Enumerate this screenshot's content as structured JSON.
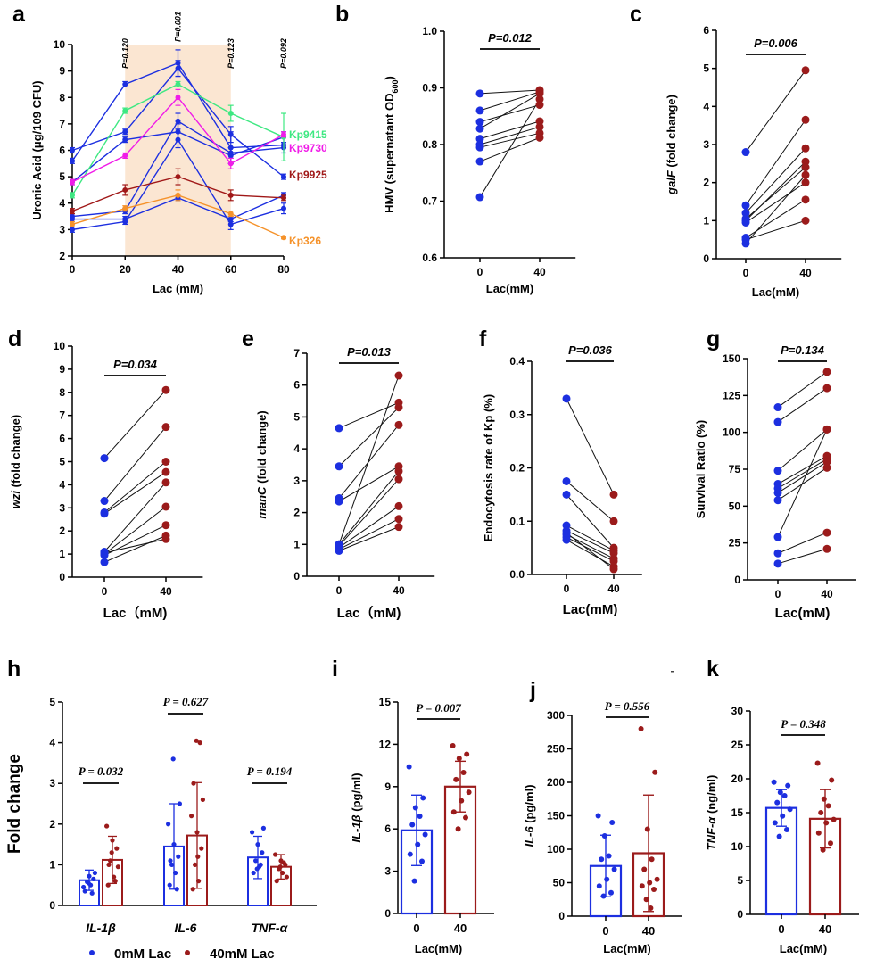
{
  "colors": {
    "blue": "#1c2fe0",
    "red": "#9b1b1b",
    "green": "#3ee882",
    "magenta": "#f01ce8",
    "darkred": "#a01818",
    "orange": "#f5922a",
    "shade": "#fbe6d2"
  },
  "legend": {
    "items": [
      {
        "label": "0mM Lac",
        "color": "#1c2fe0"
      },
      {
        "label": "40mM Lac",
        "color": "#9b1b1b"
      }
    ]
  },
  "chart_data": [
    {
      "id": "a",
      "type": "line",
      "label": "a",
      "xlabel": "Lac (mM)",
      "ylabel": "Uronic Acid (μg/10⁹ CFU)",
      "x": [
        0,
        20,
        40,
        60,
        80
      ],
      "ylim": [
        2,
        10
      ],
      "yticks": [
        2,
        3,
        4,
        5,
        6,
        7,
        8,
        9,
        10
      ],
      "shade_range": [
        20,
        60
      ],
      "pvalues": [
        {
          "x": 20,
          "text": "P=0.120"
        },
        {
          "x": 40,
          "text": "P=0.001"
        },
        {
          "x": 60,
          "text": "P=0.123"
        },
        {
          "x": 80,
          "text": "P=0.092"
        }
      ],
      "series": [
        {
          "name": "b1",
          "color": "#1c2fe0",
          "values": [
            5.6,
            8.5,
            9.3,
            6.1,
            6.2
          ],
          "err": [
            0.1,
            0.1,
            0.5,
            0.6,
            0.1
          ]
        },
        {
          "name": "b2",
          "color": "#1c2fe0",
          "values": [
            6.0,
            6.7,
            9.1,
            6.6,
            5.0
          ],
          "err": [
            0.1,
            0.1,
            0.3,
            0.3,
            0.1
          ]
        },
        {
          "name": "b3",
          "color": "#1c2fe0",
          "values": [
            4.8,
            6.4,
            6.7,
            5.8,
            6.5
          ],
          "err": [
            0.1,
            0.1,
            0.3,
            0.3,
            0.2
          ]
        },
        {
          "name": "b4",
          "color": "#1c2fe0",
          "values": [
            3.5,
            3.7,
            7.1,
            5.9,
            6.1
          ],
          "err": [
            0.1,
            0.1,
            0.3,
            0.2,
            0.2
          ]
        },
        {
          "name": "b5",
          "color": "#1c2fe0",
          "values": [
            3.0,
            3.3,
            6.4,
            3.2,
            3.8
          ],
          "err": [
            0.1,
            0.1,
            0.3,
            0.2,
            0.2
          ]
        },
        {
          "name": "b6",
          "color": "#1c2fe0",
          "values": [
            3.4,
            3.4,
            4.2,
            3.4,
            4.3
          ],
          "err": [
            0.1,
            0.1,
            0.1,
            0.1,
            0.1
          ]
        },
        {
          "name": "Kp9415",
          "color": "#3ee882",
          "values": [
            4.3,
            7.5,
            8.5,
            7.4,
            6.5
          ],
          "err": [
            0.1,
            0.1,
            0.1,
            0.3,
            0.9
          ],
          "label": true
        },
        {
          "name": "Kp9730",
          "color": "#f01ce8",
          "values": [
            4.8,
            5.8,
            8.0,
            5.5,
            6.6
          ],
          "err": [
            0.1,
            0.1,
            0.3,
            0.2,
            0.1
          ],
          "label": true
        },
        {
          "name": "Kp9925",
          "color": "#a01818",
          "values": [
            3.7,
            4.5,
            5.0,
            4.3,
            4.2
          ],
          "err": [
            0.1,
            0.2,
            0.3,
            0.2,
            0.1
          ],
          "label": true
        },
        {
          "name": "Kp326",
          "color": "#f5922a",
          "values": [
            3.2,
            3.8,
            4.3,
            3.6,
            2.7
          ],
          "err": [
            0.1,
            0.1,
            0.2,
            0.1,
            0.05
          ],
          "label": true
        }
      ]
    },
    {
      "id": "b",
      "type": "scatter",
      "label": "b",
      "xlabel": "Lac(mM)",
      "ylabel": "HMV (supernatant OD",
      "ylabel_sub": "600",
      "ylabel_end": ")",
      "categories": [
        "0",
        "40"
      ],
      "ylim": [
        0.6,
        1.0
      ],
      "yticks": [
        "0.6",
        "0.7",
        "0.8",
        "0.9",
        "1.0"
      ],
      "pvalue": "P=0.012",
      "pairs": [
        [
          0.89,
          0.896
        ],
        [
          0.86,
          0.893
        ],
        [
          0.84,
          0.87
        ],
        [
          0.828,
          0.89
        ],
        [
          0.81,
          0.841
        ],
        [
          0.8,
          0.831
        ],
        [
          0.795,
          0.82
        ],
        [
          0.77,
          0.812
        ],
        [
          0.707,
          0.88
        ]
      ]
    },
    {
      "id": "c",
      "type": "scatter",
      "label": "c",
      "xlabel": "Lac(mM)",
      "ylabel": "galF  (fold change)",
      "ylabel_italic": "galF",
      "ylabel_rest": " (fold change)",
      "categories": [
        "0",
        "40"
      ],
      "ylim": [
        0,
        6
      ],
      "yticks": [
        "0",
        "1",
        "2",
        "3",
        "4",
        "5",
        "6"
      ],
      "pvalue": "P=0.006",
      "pairs": [
        [
          2.8,
          4.95
        ],
        [
          1.4,
          3.65
        ],
        [
          1.2,
          2.9
        ],
        [
          1.0,
          2.55
        ],
        [
          1.05,
          2.4
        ],
        [
          0.95,
          2.0
        ],
        [
          0.55,
          1.55
        ],
        [
          0.5,
          1.0
        ],
        [
          0.4,
          2.2
        ]
      ]
    },
    {
      "id": "d",
      "type": "scatter",
      "label": "d",
      "xlabel": "Lac（mM)",
      "ylabel_italic": "wzi",
      "ylabel_rest": " (fold change)",
      "categories": [
        "0",
        "40"
      ],
      "ylim": [
        0,
        10
      ],
      "yticks": [
        "0",
        "1",
        "2",
        "3",
        "4",
        "5",
        "6",
        "7",
        "8",
        "9",
        "10"
      ],
      "pvalue": "P=0.034",
      "pairs": [
        [
          5.15,
          8.1
        ],
        [
          3.3,
          6.5
        ],
        [
          2.8,
          5.0
        ],
        [
          2.75,
          4.55
        ],
        [
          1.1,
          4.1
        ],
        [
          1.0,
          3.05
        ],
        [
          0.95,
          2.25
        ],
        [
          0.65,
          1.8
        ],
        [
          1.05,
          1.65
        ]
      ]
    },
    {
      "id": "e",
      "type": "scatter",
      "label": "e",
      "xlabel": "Lac（mM)",
      "ylabel_italic": "manC",
      "ylabel_rest": "  (fold change)",
      "categories": [
        "0",
        "40"
      ],
      "ylim": [
        0,
        7
      ],
      "yticks": [
        "0",
        "1",
        "2",
        "3",
        "4",
        "5",
        "6",
        "7"
      ],
      "pvalue": "P=0.013",
      "pairs": [
        [
          4.65,
          5.45
        ],
        [
          3.45,
          5.3
        ],
        [
          2.45,
          4.75
        ],
        [
          2.35,
          3.45
        ],
        [
          1.0,
          3.3
        ],
        [
          0.95,
          3.05
        ],
        [
          0.9,
          2.2
        ],
        [
          0.85,
          1.8
        ],
        [
          0.8,
          1.55
        ],
        [
          1.0,
          6.3
        ]
      ]
    },
    {
      "id": "f",
      "type": "scatter",
      "label": "f",
      "xlabel": "Lac(mM)",
      "ylabel": "Endocytosis rate of Kp (%)",
      "categories": [
        "0",
        "40"
      ],
      "ylim": [
        0,
        0.4
      ],
      "yticks": [
        "0.0",
        "0.1",
        "0.2",
        "0.3",
        "0.4"
      ],
      "pvalue": "P=0.036",
      "pairs": [
        [
          0.33,
          0.15
        ],
        [
          0.175,
          0.1
        ],
        [
          0.15,
          0.05
        ],
        [
          0.092,
          0.045
        ],
        [
          0.082,
          0.04
        ],
        [
          0.075,
          0.03
        ],
        [
          0.07,
          0.025
        ],
        [
          0.065,
          0.015
        ],
        [
          0.078,
          0.01
        ]
      ]
    },
    {
      "id": "g",
      "type": "scatter",
      "label": "g",
      "xlabel": "Lac(mM)",
      "ylabel": "Survival Ratio (%)",
      "categories": [
        "0",
        "40"
      ],
      "ylim": [
        0,
        150
      ],
      "yticks": [
        "0",
        "25",
        "50",
        "75",
        "100",
        "125",
        "150"
      ],
      "pvalue": "P=0.134",
      "pairs": [
        [
          117,
          141
        ],
        [
          107,
          130
        ],
        [
          74,
          102
        ],
        [
          65,
          84
        ],
        [
          62,
          82
        ],
        [
          59,
          80
        ],
        [
          54,
          76
        ],
        [
          29,
          102
        ],
        [
          18,
          32
        ],
        [
          11,
          21
        ]
      ]
    },
    {
      "id": "h",
      "type": "bar",
      "label": "h",
      "ylabel": "Fold change",
      "categories": [
        "IL-1β",
        "IL-6",
        "TNF-α"
      ],
      "ylim": [
        0,
        5
      ],
      "yticks": [
        "0",
        "1",
        "2",
        "3",
        "4",
        "5"
      ],
      "series": [
        {
          "name": "0mM Lac",
          "color": "#1c2fe0",
          "values": [
            0.62,
            1.45,
            1.18
          ],
          "err": [
            0.25,
            1.05,
            0.52
          ],
          "points": [
            [
              0.35,
              0.5,
              0.58,
              0.65,
              0.72,
              0.45,
              0.8,
              0.55,
              0.3
            ],
            [
              0.5,
              0.8,
              1.0,
              1.2,
              1.5,
              2.0,
              2.5,
              3.6,
              0.4,
              1.1
            ],
            [
              0.8,
              0.95,
              1.1,
              1.3,
              1.5,
              1.8,
              1.9,
              0.9,
              1.0
            ]
          ]
        },
        {
          "name": "40mM Lac",
          "color": "#9b1b1b",
          "values": [
            1.12,
            1.72,
            0.95
          ],
          "err": [
            0.58,
            1.3,
            0.3
          ],
          "points": [
            [
              0.5,
              0.7,
              1.1,
              1.4,
              1.6,
              1.95,
              0.95,
              1.3,
              0.6,
              1.0
            ],
            [
              0.4,
              0.6,
              1.0,
              1.4,
              1.8,
              2.2,
              2.6,
              4.05,
              4.0,
              3.0,
              1.2
            ],
            [
              0.6,
              0.8,
              0.9,
              1.0,
              1.1,
              1.25,
              0.7,
              0.95,
              1.05
            ]
          ]
        }
      ],
      "pvalues": [
        "P = 0.032",
        "P = 0.627",
        "P = 0.194"
      ]
    },
    {
      "id": "i",
      "type": "bar",
      "label": "i",
      "xlabel": "Lac(mM)",
      "ylabel_italic": "IL-1β",
      "ylabel_rest": " (pg/ml)",
      "categories": [
        "0",
        "40"
      ],
      "ylim": [
        0,
        15
      ],
      "yticks": [
        "0",
        "3",
        "6",
        "9",
        "12",
        "15"
      ],
      "pvalue": "P = 0.007",
      "values": [
        5.9,
        9.0
      ],
      "err": [
        2.5,
        1.8
      ],
      "points": [
        [
          10.4,
          8.2,
          7.5,
          6.9,
          6.3,
          5.6,
          4.9,
          4.2,
          3.7,
          2.3
        ],
        [
          11.9,
          11.3,
          11.0,
          10.0,
          9.5,
          8.6,
          8.0,
          7.2,
          6.8,
          6.0
        ]
      ]
    },
    {
      "id": "j",
      "type": "bar",
      "label": "j",
      "xlabel": "Lac(mM)",
      "ylabel_italic": "IL-6",
      "ylabel_rest": " (pg/ml)",
      "categories": [
        "0",
        "40"
      ],
      "ylim": [
        0,
        300
      ],
      "yticks": [
        "0",
        "50",
        "100",
        "150",
        "200",
        "250",
        "300"
      ],
      "pvalue": "P = 0.556",
      "values": [
        75,
        94
      ],
      "err": [
        46,
        87
      ],
      "points": [
        [
          150,
          140,
          120,
          90,
          85,
          70,
          55,
          45,
          35,
          30
        ],
        [
          280,
          215,
          130,
          85,
          70,
          55,
          50,
          45,
          40,
          25,
          12
        ]
      ]
    },
    {
      "id": "k",
      "type": "bar",
      "label": "k",
      "xlabel": "Lac(mM)",
      "ylabel_italic": "TNF-α",
      "ylabel_rest": " (ng/ml)",
      "categories": [
        "0",
        "40"
      ],
      "ylim": [
        0,
        30
      ],
      "yticks": [
        "0",
        "5",
        "10",
        "15",
        "20",
        "25",
        "30"
      ],
      "pvalue": "P = 0.348",
      "values": [
        15.7,
        14.1
      ],
      "err": [
        2.7,
        4.3
      ],
      "points": [
        [
          19.5,
          19.0,
          18.0,
          17.5,
          16.5,
          15.5,
          14.5,
          13.5,
          12.5,
          11.5
        ],
        [
          22.3,
          19.8,
          17.0,
          16.0,
          15.0,
          14.0,
          13.5,
          12.0,
          10.5,
          9.5
        ]
      ]
    }
  ]
}
